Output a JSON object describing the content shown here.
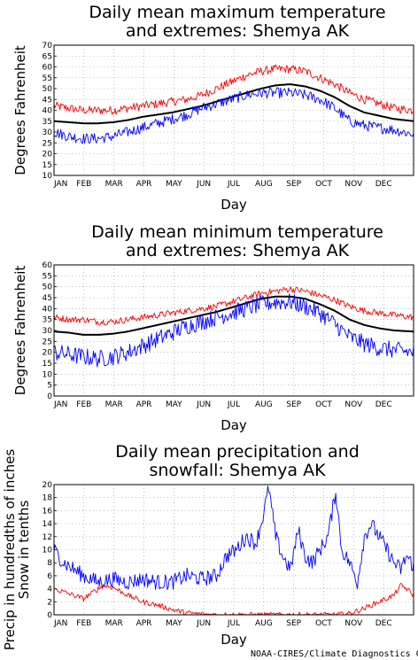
{
  "colors": {
    "normal": "#000000",
    "max": "#ff0000",
    "min": "#0000ff",
    "grid": "#999999"
  },
  "credit": "NOAA-CIRES/Climate Diagnostics Ce",
  "chart_data": [
    {
      "type": "line",
      "title": [
        "Daily mean maximum temperature",
        "and extremes: Shemya AK"
      ],
      "ylabel": "Degrees Fahrenheit",
      "xlabel": "Day",
      "categories": [
        "JAN",
        "FEB",
        "MAR",
        "APR",
        "MAY",
        "JUN",
        "JUL",
        "AUG",
        "SEP",
        "OCT",
        "NOV",
        "DEC"
      ],
      "ylim": [
        10,
        70
      ],
      "yticks": [
        10,
        15,
        20,
        25,
        30,
        35,
        40,
        45,
        50,
        55,
        60,
        65,
        70
      ],
      "grid": true,
      "series": [
        {
          "role": "normal",
          "color": "#000000",
          "x": [
            0,
            15,
            30,
            45,
            60,
            75,
            90,
            105,
            120,
            135,
            150,
            165,
            180,
            195,
            210,
            225,
            240,
            255,
            270,
            285,
            300,
            315,
            330,
            345,
            365
          ],
          "values": [
            35,
            34.5,
            34,
            34,
            34.5,
            35.5,
            37,
            38,
            39,
            40.5,
            42,
            44,
            46,
            48,
            50,
            51.5,
            52,
            51,
            49,
            46,
            42,
            39,
            37.5,
            36,
            35
          ]
        },
        {
          "role": "max",
          "color": "#ff0000",
          "x": [
            0,
            15,
            30,
            45,
            60,
            75,
            90,
            105,
            120,
            135,
            150,
            165,
            180,
            195,
            210,
            225,
            240,
            255,
            270,
            285,
            300,
            315,
            330,
            345,
            365
          ],
          "values": [
            42,
            41,
            40,
            40,
            40,
            41,
            42,
            43,
            44,
            45,
            47,
            50,
            53,
            56,
            58,
            59,
            59,
            58,
            55,
            52,
            48,
            45,
            43,
            41,
            40
          ],
          "noise": 2
        },
        {
          "role": "min",
          "color": "#0000ff",
          "x": [
            0,
            15,
            30,
            45,
            60,
            75,
            90,
            105,
            120,
            135,
            150,
            165,
            180,
            195,
            210,
            225,
            240,
            255,
            270,
            285,
            300,
            315,
            330,
            345,
            365
          ],
          "values": [
            30,
            28,
            27,
            27,
            28,
            30,
            32,
            34,
            36,
            38,
            41,
            43,
            45,
            47,
            48,
            48,
            48,
            47,
            45,
            41,
            35,
            33,
            32,
            31,
            29
          ],
          "noise": 2.5
        }
      ]
    },
    {
      "type": "line",
      "title": [
        "Daily mean minimum temperature",
        "and extremes: Shemya AK"
      ],
      "ylabel": "Degrees Fahrenheit",
      "xlabel": "Day",
      "categories": [
        "JAN",
        "FEB",
        "MAR",
        "APR",
        "MAY",
        "JUN",
        "JUL",
        "AUG",
        "SEP",
        "OCT",
        "NOV",
        "DEC"
      ],
      "ylim": [
        0,
        60
      ],
      "yticks": [
        0,
        5,
        10,
        15,
        20,
        25,
        30,
        35,
        40,
        45,
        50,
        55,
        60
      ],
      "grid": true,
      "series": [
        {
          "role": "normal",
          "color": "#000000",
          "x": [
            0,
            15,
            30,
            45,
            60,
            75,
            90,
            105,
            120,
            135,
            150,
            165,
            180,
            195,
            210,
            225,
            240,
            255,
            270,
            285,
            300,
            315,
            330,
            345,
            365
          ],
          "values": [
            29.5,
            29,
            28,
            28,
            28.5,
            29.5,
            31,
            32.5,
            34,
            35.5,
            37,
            38.5,
            40.5,
            42.5,
            44.5,
            45.5,
            45.5,
            44.5,
            42,
            39,
            35,
            32.5,
            31,
            30,
            29.5
          ]
        },
        {
          "role": "max",
          "color": "#ff0000",
          "x": [
            0,
            15,
            30,
            45,
            60,
            75,
            90,
            105,
            120,
            135,
            150,
            165,
            180,
            195,
            210,
            225,
            240,
            255,
            270,
            285,
            300,
            315,
            330,
            345,
            365
          ],
          "values": [
            36,
            35,
            35,
            34,
            34,
            35,
            36,
            37,
            38,
            39,
            40,
            41,
            43,
            45,
            47,
            48,
            49,
            48,
            46,
            44,
            41,
            39,
            38,
            37,
            36
          ],
          "noise": 1.5
        },
        {
          "role": "min",
          "color": "#0000ff",
          "x": [
            0,
            15,
            30,
            45,
            60,
            75,
            90,
            105,
            120,
            135,
            150,
            165,
            180,
            195,
            210,
            225,
            240,
            255,
            270,
            285,
            300,
            315,
            330,
            345,
            365
          ],
          "values": [
            20,
            19,
            18,
            17,
            18,
            20,
            23,
            26,
            29,
            32,
            34,
            36,
            38,
            40,
            42,
            43,
            43,
            41,
            38,
            33,
            27,
            24,
            22,
            21,
            20
          ],
          "noise": 4
        }
      ]
    },
    {
      "type": "line",
      "title": [
        "Daily mean precipitation and",
        "snowfall: Shemya AK"
      ],
      "ylabel": [
        "Precip in hundredths of inches",
        "Snow in tenths"
      ],
      "xlabel": "Day",
      "categories": [
        "JAN",
        "FEB",
        "MAR",
        "APR",
        "MAY",
        "JUN",
        "JUL",
        "AUG",
        "SEP",
        "OCT",
        "NOV",
        "DEC"
      ],
      "ylim": [
        0,
        20
      ],
      "yticks": [
        0,
        2,
        4,
        6,
        8,
        10,
        12,
        14,
        16,
        18,
        20
      ],
      "grid": true,
      "series": [
        {
          "role": "precip",
          "color": "#0000ff",
          "x": [
            0,
            10,
            20,
            30,
            45,
            60,
            75,
            90,
            105,
            120,
            135,
            150,
            165,
            175,
            185,
            195,
            205,
            212,
            218,
            225,
            232,
            240,
            248,
            255,
            262,
            270,
            278,
            286,
            292,
            300,
            308,
            315,
            322,
            330,
            338,
            345,
            352,
            358,
            365
          ],
          "values": [
            10,
            8,
            7,
            6,
            5,
            5.5,
            5,
            5.5,
            5,
            5,
            6,
            5.5,
            6,
            9,
            10,
            12,
            11,
            15,
            19.5,
            12,
            9,
            7,
            13,
            9,
            8,
            10,
            12,
            19,
            10,
            8,
            5,
            12,
            14,
            12,
            10,
            8,
            7,
            9,
            7.5
          ],
          "noise": 1.2
        },
        {
          "role": "snow",
          "color": "#ff0000",
          "x": [
            0,
            10,
            20,
            30,
            40,
            50,
            60,
            75,
            90,
            105,
            120,
            135,
            150,
            165,
            180,
            210,
            240,
            270,
            285,
            300,
            315,
            330,
            345,
            352,
            358,
            365
          ],
          "values": [
            4,
            3.5,
            3,
            2.5,
            3.5,
            4.5,
            4.2,
            3,
            2,
            1.5,
            0.8,
            0.3,
            0.1,
            0,
            0,
            0,
            0,
            0,
            0,
            0.2,
            1,
            2,
            3,
            4.5,
            4,
            3
          ],
          "noise": 0.4
        }
      ]
    }
  ]
}
